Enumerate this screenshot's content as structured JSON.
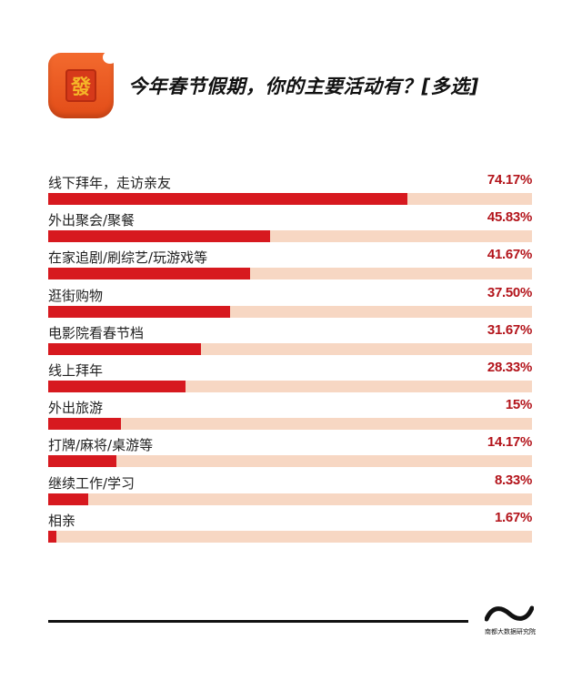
{
  "header": {
    "icon_glyph": "發",
    "icon_name": "red-envelope-icon",
    "title": "今年春节假期，你的主要活动有？[多选]"
  },
  "colors": {
    "bar": "#d7191f",
    "track": "#f7d7c3",
    "value": "#b3141b"
  },
  "items": [
    {
      "label": "线下拜年，走访亲友",
      "value": 74.17,
      "display": "74.17%"
    },
    {
      "label": "外出聚会/聚餐",
      "value": 45.83,
      "display": "45.83%"
    },
    {
      "label": "在家追剧/刷综艺/玩游戏等",
      "value": 41.67,
      "display": "41.67%"
    },
    {
      "label": "逛街购物",
      "value": 37.5,
      "display": "37.50%"
    },
    {
      "label": "电影院看春节档",
      "value": 31.67,
      "display": "31.67%"
    },
    {
      "label": "线上拜年",
      "value": 28.33,
      "display": "28.33%"
    },
    {
      "label": "外出旅游",
      "value": 15,
      "display": "15%"
    },
    {
      "label": "打牌/麻将/桌游等",
      "value": 14.17,
      "display": "14.17%"
    },
    {
      "label": "继续工作/学习",
      "value": 8.33,
      "display": "8.33%"
    },
    {
      "label": "相亲",
      "value": 1.67,
      "display": "1.67%"
    }
  ],
  "footer": {
    "logo_text": "南都大数据研究院"
  },
  "chart_data": {
    "type": "bar",
    "orientation": "horizontal",
    "title": "今年春节假期，你的主要活动有？[多选]",
    "categories": [
      "线下拜年，走访亲友",
      "外出聚会/聚餐",
      "在家追剧/刷综艺/玩游戏等",
      "逛街购物",
      "电影院看春节档",
      "线上拜年",
      "外出旅游",
      "打牌/麻将/桌游等",
      "继续工作/学习",
      "相亲"
    ],
    "values": [
      74.17,
      45.83,
      41.67,
      37.5,
      31.67,
      28.33,
      15,
      14.17,
      8.33,
      1.67
    ],
    "unit": "%",
    "xlabel": "",
    "ylabel": "",
    "xlim": [
      0,
      100
    ],
    "grid": false,
    "legend": null
  }
}
